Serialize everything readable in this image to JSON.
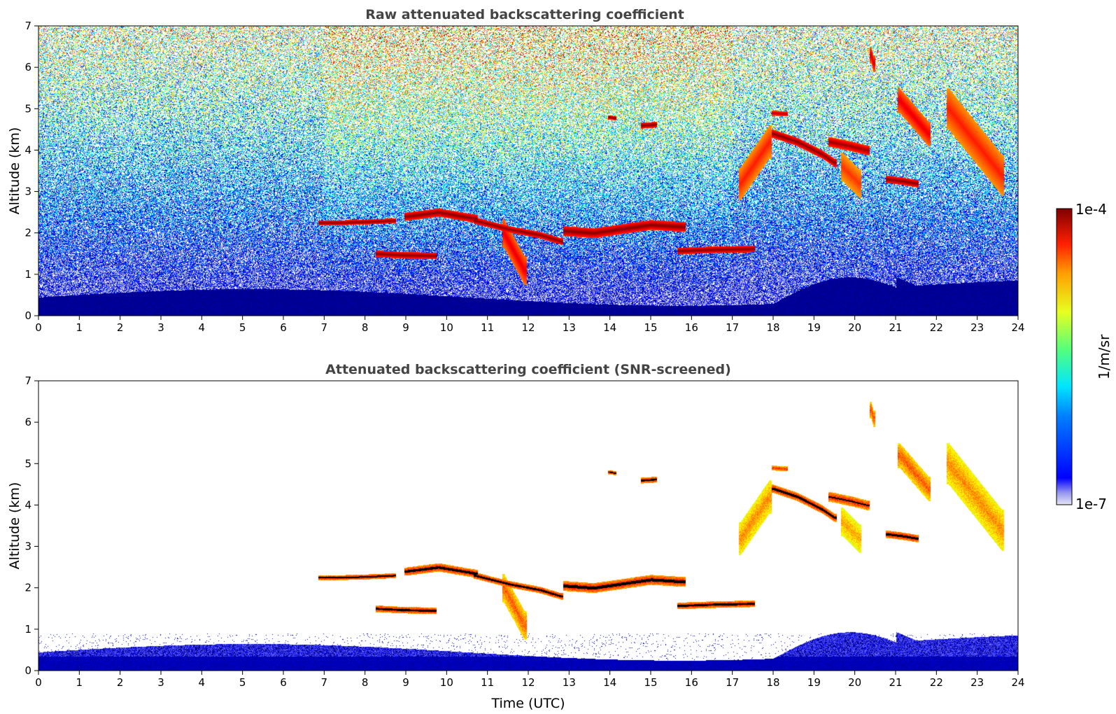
{
  "chart_data": [
    {
      "type": "heatmap",
      "title": "Raw attenuated backscattering coefficient",
      "xlabel": "",
      "ylabel": "Altitude (km)",
      "xlim": [
        0,
        24
      ],
      "ylim": [
        0,
        7
      ],
      "xticks": [
        "0",
        "1",
        "2",
        "3",
        "4",
        "5",
        "6",
        "7",
        "8",
        "9",
        "10",
        "11",
        "12",
        "13",
        "14",
        "15",
        "16",
        "17",
        "18",
        "19",
        "20",
        "21",
        "22",
        "23",
        "24"
      ],
      "yticks": [
        "0",
        "1",
        "2",
        "3",
        "4",
        "5",
        "6",
        "7"
      ],
      "noise": "high",
      "layers": [
        {
          "x": [
            6.9,
            7.3,
            8.0,
            8.7
          ],
          "y": [
            2.25,
            2.25,
            2.27,
            2.3
          ],
          "strength": 1.0,
          "thick": 0.06
        },
        {
          "x": [
            9.0,
            9.8,
            10.7
          ],
          "y": [
            2.4,
            2.5,
            2.35
          ],
          "strength": 1.0,
          "thick": 0.1
        },
        {
          "x": [
            10.7,
            11.5,
            12.3,
            12.8
          ],
          "y": [
            2.3,
            2.1,
            1.95,
            1.8
          ],
          "strength": 1.0,
          "thick": 0.08
        },
        {
          "x": [
            12.9,
            13.6,
            14.3,
            15.0,
            15.8
          ],
          "y": [
            2.05,
            2.0,
            2.1,
            2.2,
            2.15
          ],
          "strength": 1.0,
          "thick": 0.12
        },
        {
          "x": [
            8.3,
            8.9,
            9.7
          ],
          "y": [
            1.5,
            1.47,
            1.45
          ],
          "strength": 1.0,
          "thick": 0.08
        },
        {
          "x": [
            15.7,
            16.5,
            17.5
          ],
          "y": [
            1.57,
            1.6,
            1.62
          ],
          "strength": 1.0,
          "thick": 0.08
        },
        {
          "x": [
            18.0,
            18.6,
            19.2,
            19.5
          ],
          "y": [
            4.4,
            4.2,
            3.9,
            3.7
          ],
          "strength": 1.0,
          "thick": 0.1
        },
        {
          "x": [
            19.4,
            19.9,
            20.3
          ],
          "y": [
            4.2,
            4.1,
            4.0
          ],
          "strength": 0.95,
          "thick": 0.12
        },
        {
          "x": [
            20.8,
            21.2,
            21.5
          ],
          "y": [
            3.3,
            3.25,
            3.2
          ],
          "strength": 1.0,
          "thick": 0.09
        },
        {
          "x": [
            14.0,
            14.1
          ],
          "y": [
            4.8,
            4.78
          ],
          "strength": 1.0,
          "thick": 0.05
        },
        {
          "x": [
            14.8,
            15.1
          ],
          "y": [
            4.6,
            4.62
          ],
          "strength": 1.0,
          "thick": 0.07
        },
        {
          "x": [
            18.0,
            18.3
          ],
          "y": [
            4.9,
            4.88
          ],
          "strength": 0.9,
          "thick": 0.06
        },
        {
          "x": [
            20.4,
            20.45
          ],
          "y": [
            6.3,
            6.1
          ],
          "strength": 0.85,
          "thick": 0.2
        },
        {
          "x": [
            17.2,
            17.9
          ],
          "y": [
            3.2,
            4.2
          ],
          "strength": 0.7,
          "thick": 0.4
        },
        {
          "x": [
            21.1,
            21.8
          ],
          "y": [
            5.2,
            4.4
          ],
          "strength": 0.8,
          "thick": 0.3
        },
        {
          "x": [
            22.3,
            23.6
          ],
          "y": [
            5.0,
            3.4
          ],
          "strength": 0.7,
          "thick": 0.5
        },
        {
          "x": [
            11.4,
            11.9
          ],
          "y": [
            2.0,
            1.1
          ],
          "strength": 0.8,
          "thick": 0.35
        },
        {
          "x": [
            19.7,
            20.1
          ],
          "y": [
            3.6,
            3.2
          ],
          "strength": 0.65,
          "thick": 0.35
        }
      ]
    },
    {
      "type": "heatmap",
      "title": "Attenuated backscattering coefficient (SNR-screened)",
      "xlabel": "Time (UTC)",
      "ylabel": "Altitude (km)",
      "xlim": [
        0,
        24
      ],
      "ylim": [
        0,
        7
      ],
      "xticks": [
        "0",
        "1",
        "2",
        "3",
        "4",
        "5",
        "6",
        "7",
        "8",
        "9",
        "10",
        "11",
        "12",
        "13",
        "14",
        "15",
        "16",
        "17",
        "18",
        "19",
        "20",
        "21",
        "22",
        "23",
        "24"
      ],
      "yticks": [
        "0",
        "1",
        "2",
        "3",
        "4",
        "5",
        "6",
        "7"
      ],
      "noise": "none",
      "saturated_color": "#000000"
    }
  ],
  "colorbar": {
    "label": "1/m/sr",
    "max_label": "1e-4",
    "min_label": "1e-7",
    "colormap": "jet"
  }
}
